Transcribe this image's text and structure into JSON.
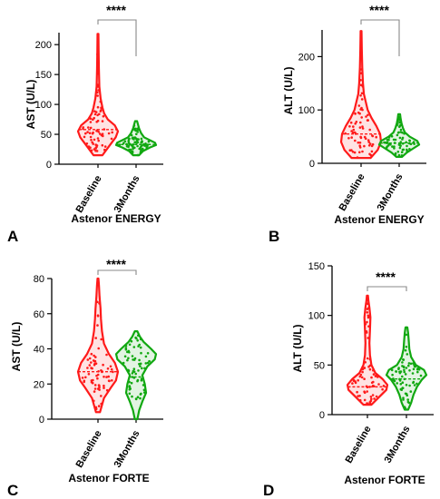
{
  "colors": {
    "baseline": "#ff1a1a",
    "months3": "#11a811",
    "axis": "#000000",
    "bracket": "#888888"
  },
  "chart_data": [
    {
      "panel": "A",
      "type": "violin",
      "title": "",
      "xlabel": "Astenor ENERGY",
      "ylabel": "AST (U/L)",
      "ylim": [
        0,
        220
      ],
      "yticks": [
        0,
        50,
        100,
        150,
        200
      ],
      "categories": [
        "Baseline",
        "3Months"
      ],
      "significance": "****",
      "series": [
        {
          "category": "Baseline",
          "min": 15,
          "max": 218,
          "median": 58,
          "density": [
            [
              15,
              10
            ],
            [
              30,
              25
            ],
            [
              45,
              40
            ],
            [
              55,
              45
            ],
            [
              65,
              38
            ],
            [
              75,
              22
            ],
            [
              85,
              14
            ],
            [
              95,
              10
            ],
            [
              110,
              6
            ],
            [
              130,
              3
            ],
            [
              160,
              2
            ],
            [
              190,
              1.5
            ],
            [
              218,
              1
            ]
          ]
        },
        {
          "category": "3Months",
          "min": 15,
          "max": 72,
          "median": 33,
          "density": [
            [
              15,
              6
            ],
            [
              22,
              14
            ],
            [
              28,
              28
            ],
            [
              32,
              40
            ],
            [
              36,
              38
            ],
            [
              40,
              28
            ],
            [
              45,
              16
            ],
            [
              52,
              10
            ],
            [
              60,
              6
            ],
            [
              66,
              4
            ],
            [
              72,
              2
            ]
          ]
        }
      ]
    },
    {
      "panel": "B",
      "type": "violin",
      "title": "",
      "xlabel": "Astenor ENERGY",
      "ylabel": "ALT (U/L)",
      "ylim": [
        0,
        250
      ],
      "yticks": [
        0,
        100,
        200
      ],
      "categories": [
        "Baseline",
        "3Months"
      ],
      "significance": "****",
      "series": [
        {
          "category": "Baseline",
          "min": 10,
          "max": 248,
          "median": 55,
          "density": [
            [
              10,
              20
            ],
            [
              25,
              35
            ],
            [
              40,
              42
            ],
            [
              55,
              40
            ],
            [
              70,
              32
            ],
            [
              85,
              22
            ],
            [
              100,
              14
            ],
            [
              115,
              10
            ],
            [
              130,
              6
            ],
            [
              150,
              4
            ],
            [
              180,
              2.5
            ],
            [
              215,
              1.5
            ],
            [
              248,
              1
            ]
          ]
        },
        {
          "category": "3Months",
          "min": 12,
          "max": 92,
          "median": 38,
          "density": [
            [
              12,
              6
            ],
            [
              20,
              16
            ],
            [
              28,
              30
            ],
            [
              35,
              42
            ],
            [
              42,
              38
            ],
            [
              50,
              22
            ],
            [
              58,
              12
            ],
            [
              66,
              8
            ],
            [
              75,
              5
            ],
            [
              84,
              3
            ],
            [
              92,
              2
            ]
          ]
        }
      ]
    },
    {
      "panel": "C",
      "type": "violin",
      "title": "",
      "xlabel": "Astenor FORTE",
      "ylabel": "AST (U/L)",
      "ylim": [
        0,
        80
      ],
      "yticks": [
        0,
        20,
        40,
        60,
        80
      ],
      "categories": [
        "Baseline",
        "3Months"
      ],
      "significance": "****",
      "series": [
        {
          "category": "Baseline",
          "min": 4,
          "max": 80,
          "median": 27,
          "density": [
            [
              4,
              4
            ],
            [
              12,
              12
            ],
            [
              18,
              26
            ],
            [
              22,
              36
            ],
            [
              27,
              40
            ],
            [
              32,
              34
            ],
            [
              37,
              22
            ],
            [
              43,
              12
            ],
            [
              50,
              8
            ],
            [
              57,
              6
            ],
            [
              63,
              5
            ],
            [
              70,
              3
            ],
            [
              76,
              2
            ],
            [
              80,
              1
            ]
          ]
        },
        {
          "category": "3Months",
          "min": 0,
          "max": 50,
          "median": 24,
          "density": [
            [
              0,
              2
            ],
            [
              5,
              5
            ],
            [
              10,
              10
            ],
            [
              15,
              16
            ],
            [
              20,
              14
            ],
            [
              25,
              10
            ],
            [
              30,
              18
            ],
            [
              34,
              30
            ],
            [
              37,
              32
            ],
            [
              40,
              24
            ],
            [
              44,
              12
            ],
            [
              47,
              6
            ],
            [
              50,
              2
            ]
          ]
        }
      ]
    },
    {
      "panel": "D",
      "type": "violin",
      "title": "",
      "xlabel": "Astenor FORTE",
      "ylabel": "ALT (U/L)",
      "ylim": [
        0,
        150
      ],
      "yticks": [
        0,
        50,
        100,
        150
      ],
      "categories": [
        "Baseline",
        "3Months"
      ],
      "significance": "****",
      "series": [
        {
          "category": "Baseline",
          "min": 10,
          "max": 120,
          "median": 28,
          "density": [
            [
              10,
              8
            ],
            [
              18,
              24
            ],
            [
              25,
              38
            ],
            [
              30,
              40
            ],
            [
              36,
              30
            ],
            [
              42,
              16
            ],
            [
              50,
              8
            ],
            [
              60,
              5
            ],
            [
              72,
              4
            ],
            [
              85,
              5
            ],
            [
              98,
              6
            ],
            [
              108,
              4
            ],
            [
              115,
              2
            ],
            [
              120,
              1
            ]
          ]
        },
        {
          "category": "3Months",
          "min": 5,
          "max": 88,
          "median": 36,
          "density": [
            [
              5,
              3
            ],
            [
              12,
              8
            ],
            [
              20,
              12
            ],
            [
              28,
              18
            ],
            [
              35,
              26
            ],
            [
              40,
              34
            ],
            [
              45,
              30
            ],
            [
              50,
              16
            ],
            [
              58,
              8
            ],
            [
              66,
              5
            ],
            [
              74,
              4
            ],
            [
              82,
              3
            ],
            [
              88,
              1.5
            ]
          ]
        }
      ]
    }
  ]
}
